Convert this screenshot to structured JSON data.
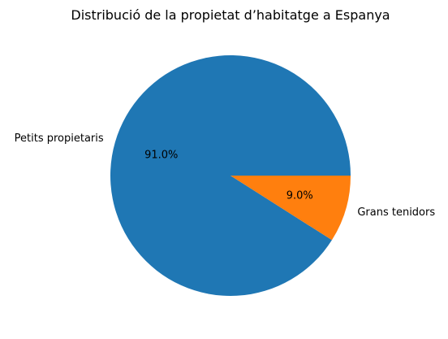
{
  "chart_data": {
    "type": "pie",
    "title": "Distribució de la propietat d’habitatge a Espanya",
    "slices": [
      {
        "label": "Petits propietaris",
        "value": 91.0,
        "pct_label": "91.0%",
        "color": "#1f77b4"
      },
      {
        "label": "Grans tenidors",
        "value": 9.0,
        "pct_label": "9.0%",
        "color": "#ff7f0e"
      }
    ],
    "start_angle_deg": 0,
    "direction": "counterclockwise"
  }
}
